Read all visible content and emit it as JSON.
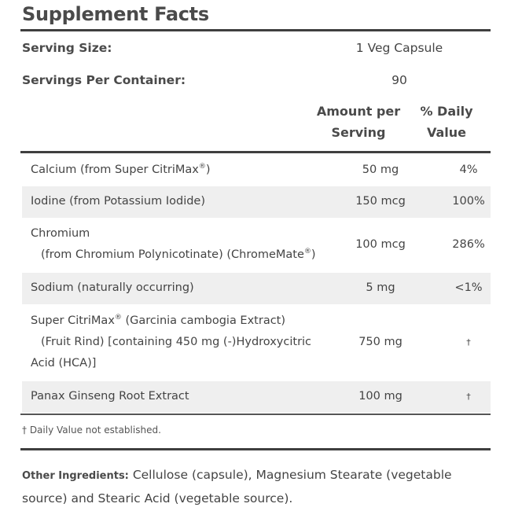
{
  "title": "Supplement Facts",
  "serving": {
    "size_label": "Serving Size:",
    "size_value": "1 Veg Capsule",
    "per_container_label": "Servings Per Container:",
    "per_container_value": "90"
  },
  "headers": {
    "amount_line1": "Amount per",
    "amount_line2": "Serving",
    "dv_line1": "% Daily",
    "dv_line2": "Value"
  },
  "rows": [
    {
      "name_line1_pre": "Calcium (from Super CitriMax",
      "name_line1_sup": "®",
      "name_line1_post": ")",
      "amount": "50 mg",
      "dv": "4%"
    },
    {
      "name_line1": "Iodine (from Potassium Iodide)",
      "amount": "150 mcg",
      "dv": "100%"
    },
    {
      "name_line1": "Chromium",
      "name_line2_pre": "(from Chromium Polynicotinate) (ChromeMate",
      "name_line2_sup": "®",
      "name_line2_post": ")",
      "amount": "100 mcg",
      "dv": "286%"
    },
    {
      "name_line1": "Sodium (naturally occurring)",
      "amount": "5 mg",
      "dv": "<1%"
    },
    {
      "name_line1_pre": "Super CitriMax",
      "name_line1_sup": "®",
      "name_line1_post": " (Garcinia cambogia Extract)",
      "name_line2": "(Fruit Rind) [containing 450 mg (-)Hydroxycitric",
      "name_line3": "Acid (HCA)]",
      "amount": "750 mg",
      "dv": "†"
    },
    {
      "name_line1": "Panax Ginseng Root Extract",
      "amount": "100 mg",
      "dv": "†"
    }
  ],
  "footnote": "† Daily Value not established.",
  "other_ingredients": {
    "label": "Other Ingredients:",
    "text": "Cellulose (capsule), Magnesium Stearate (vegetable source) and Stearic Acid (vegetable source)."
  }
}
